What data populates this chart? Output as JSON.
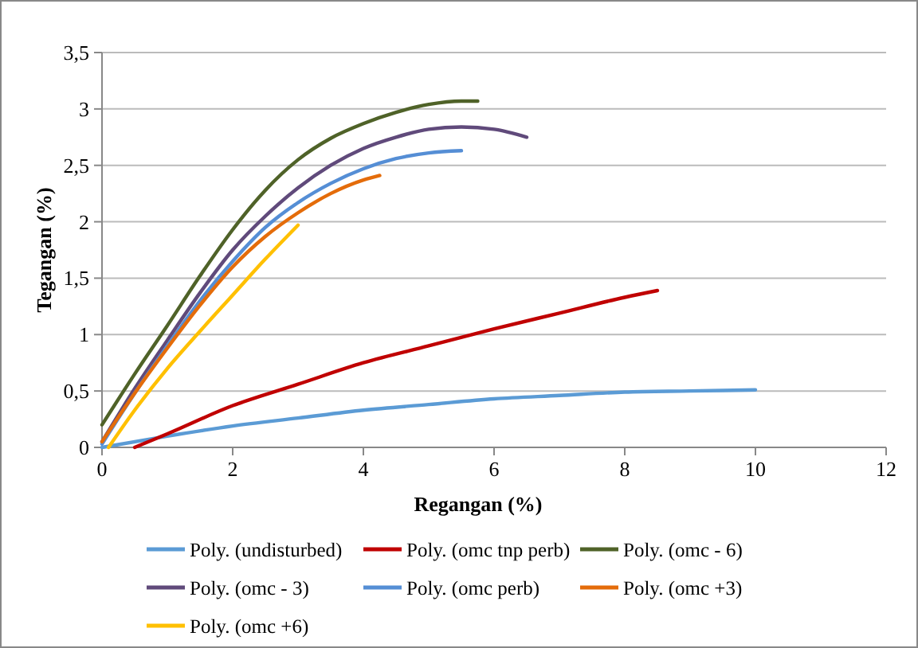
{
  "chart_data": {
    "type": "line",
    "xlabel": "Regangan (%)",
    "ylabel": "Tegangan (%)",
    "xlim": [
      0,
      12
    ],
    "ylim": [
      0,
      3.5
    ],
    "xticks": [
      0,
      2,
      4,
      6,
      8,
      10,
      12
    ],
    "yticks": [
      {
        "value": 0,
        "label": "0"
      },
      {
        "value": 0.5,
        "label": "0,5"
      },
      {
        "value": 1,
        "label": "1"
      },
      {
        "value": 1.5,
        "label": "1,5"
      },
      {
        "value": 2,
        "label": "2"
      },
      {
        "value": 2.5,
        "label": "2,5"
      },
      {
        "value": 3,
        "label": "3"
      },
      {
        "value": 3.5,
        "label": "3,5"
      }
    ],
    "grid": "y",
    "legend": "bottom",
    "marker": "none",
    "line_style": "solid",
    "series": [
      {
        "name": "Poly. (undisturbed)",
        "color": "#5b9bd5",
        "x": [
          0,
          1,
          2,
          3,
          4,
          5,
          6,
          7,
          8,
          9,
          10
        ],
        "values": [
          0,
          0.1,
          0.19,
          0.26,
          0.33,
          0.38,
          0.43,
          0.46,
          0.49,
          0.5,
          0.51
        ]
      },
      {
        "name": "Poly. (omc tnp perb)",
        "color": "#c00000",
        "x": [
          0.5,
          1,
          2,
          3,
          4,
          5,
          6,
          7,
          8,
          8.5
        ],
        "values": [
          0,
          0.12,
          0.37,
          0.56,
          0.75,
          0.9,
          1.05,
          1.19,
          1.33,
          1.39
        ]
      },
      {
        "name": "Poly. (omc - 6)",
        "color": "#4f6228",
        "x": [
          0,
          0.5,
          1,
          1.5,
          2,
          2.5,
          3,
          3.5,
          4,
          4.5,
          5,
          5.5,
          5.75
        ],
        "values": [
          0.2,
          0.65,
          1.08,
          1.52,
          1.93,
          2.28,
          2.55,
          2.74,
          2.87,
          2.97,
          3.04,
          3.07,
          3.07
        ]
      },
      {
        "name": "Poly. (omc - 3)",
        "color": "#604a7b",
        "x": [
          0,
          0.5,
          1,
          1.5,
          2,
          2.5,
          3,
          3.5,
          4,
          4.5,
          5,
          5.5,
          6,
          6.5
        ],
        "values": [
          0.05,
          0.52,
          0.95,
          1.37,
          1.75,
          2.05,
          2.3,
          2.5,
          2.65,
          2.75,
          2.82,
          2.84,
          2.82,
          2.75
        ]
      },
      {
        "name": "Poly. (omc perb)",
        "color": "#558ed5",
        "x": [
          0,
          0.5,
          1,
          1.5,
          2,
          2.5,
          3,
          3.5,
          4,
          4.5,
          5,
          5.5
        ],
        "values": [
          0.03,
          0.48,
          0.9,
          1.3,
          1.65,
          1.95,
          2.17,
          2.34,
          2.47,
          2.56,
          2.61,
          2.63
        ]
      },
      {
        "name": "Poly. (omc +3)",
        "color": "#e46c0a",
        "x": [
          0,
          0.5,
          1,
          1.5,
          2,
          2.5,
          3,
          3.5,
          4,
          4.25
        ],
        "values": [
          0.05,
          0.48,
          0.88,
          1.26,
          1.6,
          1.87,
          2.08,
          2.25,
          2.37,
          2.41
        ]
      },
      {
        "name": "Poly. (omc +6)",
        "color": "#ffc000",
        "x": [
          0.1,
          0.5,
          1,
          1.5,
          2,
          2.5,
          3
        ],
        "values": [
          0,
          0.33,
          0.7,
          1.03,
          1.35,
          1.67,
          1.97
        ]
      }
    ]
  }
}
